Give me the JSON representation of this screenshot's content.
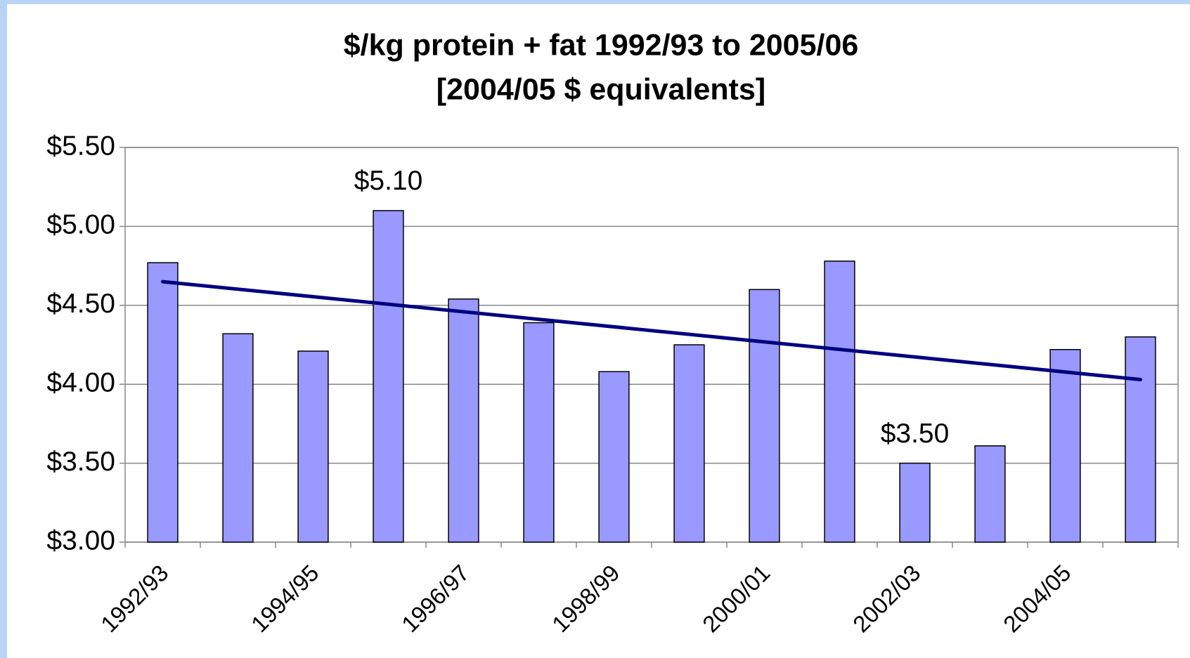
{
  "chart_data": {
    "type": "bar",
    "title": "$/kg protein + fat 1992/93 to 2005/06",
    "subtitle": "[2004/05 $ equivalents]",
    "categories": [
      "1992/93",
      null,
      "1994/95",
      null,
      "1996/97",
      null,
      "1998/99",
      null,
      "2000/01",
      null,
      "2002/03",
      null,
      "2004/05",
      null
    ],
    "values": [
      4.77,
      4.32,
      4.21,
      5.1,
      4.54,
      4.39,
      4.08,
      4.25,
      4.6,
      4.78,
      3.5,
      3.61,
      4.22,
      4.3
    ],
    "value_labels": [
      null,
      null,
      null,
      "$5.10",
      null,
      null,
      null,
      null,
      null,
      null,
      "$3.50",
      null,
      null,
      null
    ],
    "color": "#9999ff",
    "trend": {
      "start": 4.65,
      "end": 4.03,
      "color": "#000080"
    },
    "ylim": [
      3.0,
      5.5
    ],
    "yticks": [
      {
        "value": 3.0,
        "label": "$3.00"
      },
      {
        "value": 3.5,
        "label": "$3.50"
      },
      {
        "value": 4.0,
        "label": "$4.00"
      },
      {
        "value": 4.5,
        "label": "$4.50"
      },
      {
        "value": 5.0,
        "label": "$5.00"
      },
      {
        "value": 5.5,
        "label": "$5.50"
      }
    ],
    "grid": true
  }
}
